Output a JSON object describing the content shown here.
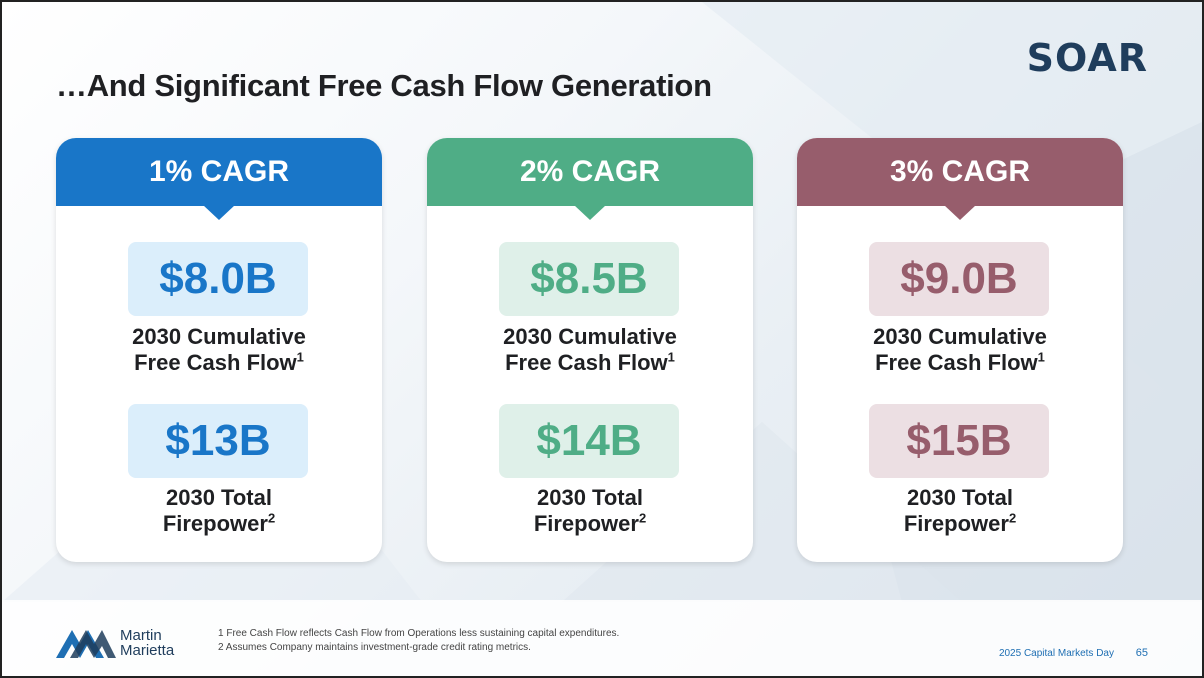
{
  "title": "…And Significant Free Cash Flow Generation",
  "brand_mark": "SOAR",
  "cards": [
    {
      "header": "1% CAGR",
      "color": "#1976c8",
      "light": "#dbeefb",
      "value1": "$8.0B",
      "label1_line1": "2030 Cumulative",
      "label1_line2": "Free Cash Flow",
      "label1_note": "1",
      "value2": "$13B",
      "label2_line1": "2030 Total",
      "label2_line2": "Firepower",
      "label2_note": "2"
    },
    {
      "header": "2% CAGR",
      "color": "#4fad86",
      "light": "#dff0e9",
      "value1": "$8.5B",
      "label1_line1": "2030 Cumulative",
      "label1_line2": "Free Cash Flow",
      "label1_note": "1",
      "value2": "$14B",
      "label2_line1": "2030 Total",
      "label2_line2": "Firepower",
      "label2_note": "2"
    },
    {
      "header": "3% CAGR",
      "color": "#975d6c",
      "light": "#ecdfe3",
      "value1": "$9.0B",
      "label1_line1": "2030 Cumulative",
      "label1_line2": "Free Cash Flow",
      "label1_note": "1",
      "value2": "$15B",
      "label2_line1": "2030 Total",
      "label2_line2": "Firepower",
      "label2_note": "2"
    }
  ],
  "footer": {
    "logo_line1": "Martin",
    "logo_line2": "Marietta",
    "footnote1": "1  Free Cash Flow reflects Cash Flow from Operations less sustaining capital expenditures.",
    "footnote2": "2  Assumes Company maintains investment-grade credit rating metrics.",
    "event": "2025 Capital Markets Day",
    "page_number": "65"
  }
}
